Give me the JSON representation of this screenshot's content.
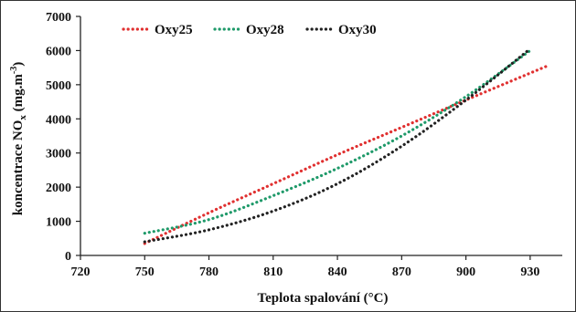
{
  "chart_data": {
    "type": "line",
    "title": "",
    "xlabel": "Teplota spalování (°C)",
    "ylabel_main": "koncentrace NO",
    "ylabel_sub": "x",
    "ylabel_tail": " (mg.m",
    "ylabel_sup": "-3",
    "ylabel_end": ")",
    "xlim": [
      720,
      945
    ],
    "ylim": [
      0,
      7000
    ],
    "xticks": [
      720,
      750,
      780,
      810,
      840,
      870,
      900,
      930
    ],
    "yticks": [
      0,
      1000,
      2000,
      3000,
      4000,
      5000,
      6000,
      7000
    ],
    "grid": false,
    "legend_position": "top",
    "series": [
      {
        "name": "Oxy25",
        "color": "#e03030",
        "x": [
          750,
          780,
          810,
          840,
          870,
          900,
          938
        ],
        "y": [
          350,
          1250,
          2100,
          2950,
          3750,
          4550,
          5550
        ]
      },
      {
        "name": "Oxy28",
        "color": "#1f9a6a",
        "x": [
          750,
          780,
          810,
          840,
          870,
          900,
          930
        ],
        "y": [
          650,
          1050,
          1750,
          2550,
          3500,
          4650,
          6000
        ]
      },
      {
        "name": "Oxy30",
        "color": "#222222",
        "x": [
          750,
          780,
          810,
          840,
          870,
          900,
          930
        ],
        "y": [
          400,
          750,
          1300,
          2100,
          3200,
          4550,
          6050
        ]
      }
    ]
  }
}
